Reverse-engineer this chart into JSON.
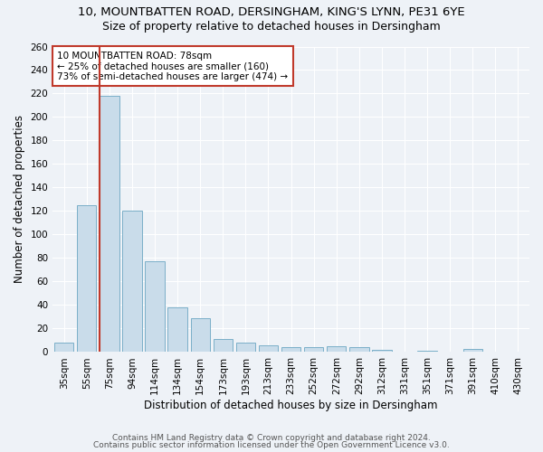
{
  "title1": "10, MOUNTBATTEN ROAD, DERSINGHAM, KING'S LYNN, PE31 6YE",
  "title2": "Size of property relative to detached houses in Dersingham",
  "xlabel": "Distribution of detached houses by size in Dersingham",
  "ylabel": "Number of detached properties",
  "categories": [
    "35sqm",
    "55sqm",
    "75sqm",
    "94sqm",
    "114sqm",
    "134sqm",
    "154sqm",
    "173sqm",
    "193sqm",
    "213sqm",
    "233sqm",
    "252sqm",
    "272sqm",
    "292sqm",
    "312sqm",
    "331sqm",
    "351sqm",
    "371sqm",
    "391sqm",
    "410sqm",
    "430sqm"
  ],
  "values": [
    8,
    125,
    218,
    120,
    77,
    38,
    29,
    11,
    8,
    6,
    4,
    4,
    5,
    4,
    2,
    0,
    1,
    0,
    3,
    0,
    0
  ],
  "bar_color": "#c9dcea",
  "bar_edge_color": "#7aafc8",
  "highlight_bar_index": 2,
  "highlight_edge_color": "#c0392b",
  "ylim": [
    0,
    260
  ],
  "yticks": [
    0,
    20,
    40,
    60,
    80,
    100,
    120,
    140,
    160,
    180,
    200,
    220,
    240,
    260
  ],
  "annotation_text": "10 MOUNTBATTEN ROAD: 78sqm\n← 25% of detached houses are smaller (160)\n73% of semi-detached houses are larger (474) →",
  "footer1": "Contains HM Land Registry data © Crown copyright and database right 2024.",
  "footer2": "Contains public sector information licensed under the Open Government Licence v3.0.",
  "background_color": "#eef2f7",
  "grid_color": "#ffffff",
  "title_fontsize": 9.5,
  "subtitle_fontsize": 9,
  "tick_fontsize": 7.5,
  "axis_label_fontsize": 8.5
}
